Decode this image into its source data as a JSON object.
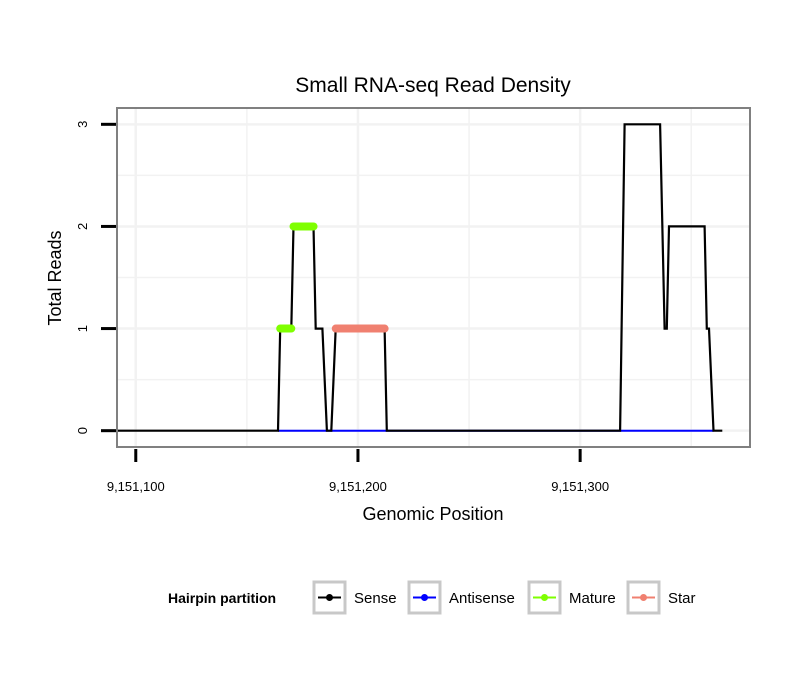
{
  "chart_data": {
    "type": "line",
    "title": "Small RNA-seq Read Density",
    "xlabel": "Genomic Position",
    "ylabel": "Total Reads",
    "xlim": [
      9151092,
      9151376
    ],
    "ylim": [
      -0.15,
      3.15
    ],
    "x_ticks": [
      9151100,
      9151200,
      9151300
    ],
    "x_tick_labels": [
      "9,151,100",
      "9,151,200",
      "9,151,300"
    ],
    "y_ticks": [
      0,
      1,
      2,
      3
    ],
    "y_tick_labels": [
      "0",
      "1",
      "2",
      "3"
    ],
    "grid": true,
    "legend_position": "bottom",
    "legend_title": "Hairpin partition",
    "series": [
      {
        "name": "Sense",
        "color": "#000000",
        "x": [
          9151085,
          9151164,
          9151165,
          9151170,
          9151171,
          9151180,
          9151181,
          9151184,
          9151186,
          9151188,
          9151190,
          9151191,
          9151212,
          9151213,
          9151318,
          9151320,
          9151336,
          9151338,
          9151339,
          9151340,
          9151356,
          9151357,
          9151358,
          9151360,
          9151364
        ],
        "y": [
          0,
          0,
          1,
          1,
          2,
          2,
          1,
          1,
          0,
          0,
          1,
          1,
          1,
          0,
          0,
          3,
          3,
          1,
          1,
          2,
          2,
          1,
          1,
          0,
          0
        ]
      },
      {
        "name": "Antisense",
        "color": "#0000ff",
        "x": [
          9151164,
          9151360
        ],
        "y": [
          0,
          0
        ]
      },
      {
        "name": "Mature",
        "color": "#7fff00",
        "segments": [
          {
            "x0": 9151165,
            "x1": 9151170,
            "y": 1
          },
          {
            "x0": 9151171,
            "x1": 9151180,
            "y": 2
          }
        ]
      },
      {
        "name": "Star",
        "color": "#f08070",
        "segments": [
          {
            "x0": 9151190,
            "x1": 9151212,
            "y": 1
          }
        ]
      }
    ]
  }
}
